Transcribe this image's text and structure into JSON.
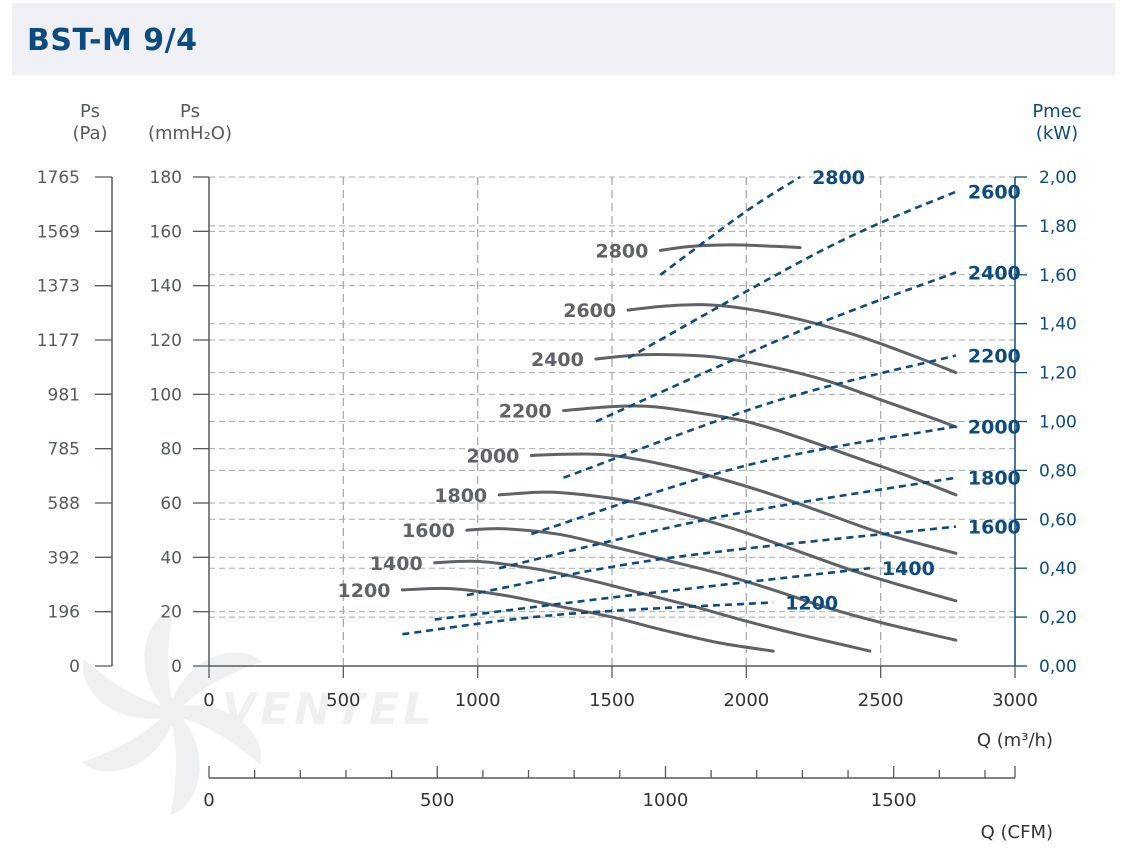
{
  "header": {
    "title": "BST-M 9/4"
  },
  "chart_data": {
    "type": "line",
    "title": "BST-M 9/4",
    "x_axis": {
      "label": "Q (m³/h)",
      "range": [
        0,
        3000
      ],
      "ticks": [
        "0",
        "500",
        "1000",
        "1500",
        "2000",
        "2500",
        "3000"
      ]
    },
    "cfm_axis": {
      "label": "Q (CFM)",
      "ticks": [
        "0",
        "500",
        "1000",
        "1500"
      ],
      "tick_values": [
        0,
        500,
        1000,
        1500
      ]
    },
    "y_pa_axis": {
      "label_top": "Ps",
      "label_unit": "(Pa)",
      "ticks": [
        "0",
        "196",
        "392",
        "588",
        "785",
        "981",
        "1177",
        "1373",
        "1569",
        "1765"
      ]
    },
    "y_mm_axis": {
      "label_top": "Ps",
      "label_unit": "(mmH₂O)",
      "range": [
        0,
        180
      ],
      "ticks": [
        "0",
        "20",
        "40",
        "60",
        "80",
        "100",
        "120",
        "140",
        "160",
        "180"
      ]
    },
    "y_power_axis": {
      "label_top": "Pmec",
      "label_unit": "(kW)",
      "range": [
        0,
        2
      ],
      "ticks": [
        "0,00",
        "0,20",
        "0,40",
        "0,60",
        "0,80",
        "1,00",
        "1,20",
        "1,40",
        "1,60",
        "1,80",
        "2,00"
      ]
    },
    "grid": true,
    "colors": {
      "pressure": "#5f6268",
      "power": "#0d4a7e",
      "grid": "#a9abb0",
      "axis": "#555a60"
    },
    "pressure_curves": [
      {
        "rpm": "1200",
        "points": [
          [
            720,
            28
          ],
          [
            900,
            28.5
          ],
          [
            1100,
            26
          ],
          [
            1300,
            22
          ],
          [
            1500,
            18
          ],
          [
            1700,
            13
          ],
          [
            1900,
            8.5
          ],
          [
            2100,
            5.5
          ]
        ]
      },
      {
        "rpm": "1400",
        "points": [
          [
            840,
            38
          ],
          [
            1000,
            38.5
          ],
          [
            1200,
            36
          ],
          [
            1400,
            32
          ],
          [
            1600,
            27
          ],
          [
            1800,
            22
          ],
          [
            2000,
            16.5
          ],
          [
            2200,
            11.5
          ],
          [
            2460,
            5.5
          ]
        ]
      },
      {
        "rpm": "1600",
        "points": [
          [
            960,
            50
          ],
          [
            1100,
            50.5
          ],
          [
            1300,
            48.5
          ],
          [
            1500,
            44
          ],
          [
            1700,
            39
          ],
          [
            1900,
            34
          ],
          [
            2100,
            28
          ],
          [
            2300,
            21.5
          ],
          [
            2500,
            16
          ],
          [
            2780,
            9.5
          ]
        ]
      },
      {
        "rpm": "1800",
        "points": [
          [
            1080,
            63
          ],
          [
            1250,
            64
          ],
          [
            1400,
            63
          ],
          [
            1600,
            60
          ],
          [
            1800,
            55
          ],
          [
            2000,
            49
          ],
          [
            2200,
            42
          ],
          [
            2400,
            35
          ],
          [
            2600,
            29
          ],
          [
            2780,
            24
          ]
        ]
      },
      {
        "rpm": "2000",
        "points": [
          [
            1200,
            77.5
          ],
          [
            1350,
            78
          ],
          [
            1500,
            77.5
          ],
          [
            1700,
            74
          ],
          [
            1900,
            69
          ],
          [
            2100,
            63
          ],
          [
            2300,
            56
          ],
          [
            2500,
            49
          ],
          [
            2780,
            41.5
          ]
        ]
      },
      {
        "rpm": "2200",
        "points": [
          [
            1320,
            94
          ],
          [
            1500,
            95.5
          ],
          [
            1650,
            95.5
          ],
          [
            1800,
            93.5
          ],
          [
            2000,
            90
          ],
          [
            2200,
            84
          ],
          [
            2400,
            77
          ],
          [
            2600,
            70
          ],
          [
            2780,
            63
          ]
        ]
      },
      {
        "rpm": "2400",
        "points": [
          [
            1440,
            113
          ],
          [
            1600,
            114.5
          ],
          [
            1750,
            114.5
          ],
          [
            1900,
            113.5
          ],
          [
            2100,
            110
          ],
          [
            2300,
            105
          ],
          [
            2500,
            98
          ],
          [
            2700,
            91
          ],
          [
            2780,
            88
          ]
        ]
      },
      {
        "rpm": "2600",
        "points": [
          [
            1560,
            131
          ],
          [
            1700,
            132.5
          ],
          [
            1850,
            133
          ],
          [
            2000,
            131.5
          ],
          [
            2200,
            127.5
          ],
          [
            2400,
            122
          ],
          [
            2600,
            115
          ],
          [
            2780,
            108
          ]
        ]
      },
      {
        "rpm": "2800",
        "points": [
          [
            1680,
            153
          ],
          [
            1800,
            154.5
          ],
          [
            1950,
            155
          ],
          [
            2100,
            154.5
          ],
          [
            2200,
            154
          ]
        ]
      }
    ],
    "power_curves": [
      {
        "rpm": "1200",
        "points": [
          [
            720,
            0.13
          ],
          [
            1300,
            0.21
          ],
          [
            2100,
            0.26
          ]
        ]
      },
      {
        "rpm": "1400",
        "points": [
          [
            840,
            0.19
          ],
          [
            1500,
            0.28
          ],
          [
            2460,
            0.4
          ]
        ]
      },
      {
        "rpm": "1600",
        "points": [
          [
            960,
            0.29
          ],
          [
            1700,
            0.44
          ],
          [
            2780,
            0.57
          ]
        ]
      },
      {
        "rpm": "1800",
        "points": [
          [
            1080,
            0.4
          ],
          [
            1900,
            0.61
          ],
          [
            2780,
            0.77
          ]
        ]
      },
      {
        "rpm": "2000",
        "points": [
          [
            1200,
            0.54
          ],
          [
            2000,
            0.82
          ],
          [
            2780,
            0.98
          ]
        ]
      },
      {
        "rpm": "2200",
        "points": [
          [
            1320,
            0.77
          ],
          [
            2100,
            1.08
          ],
          [
            2780,
            1.27
          ]
        ]
      },
      {
        "rpm": "2400",
        "points": [
          [
            1440,
            1.0
          ],
          [
            2200,
            1.37
          ],
          [
            2780,
            1.61
          ]
        ]
      },
      {
        "rpm": "2600",
        "points": [
          [
            1560,
            1.26
          ],
          [
            2300,
            1.71
          ],
          [
            2780,
            1.94
          ]
        ]
      },
      {
        "rpm": "2800",
        "points": [
          [
            1680,
            1.6
          ],
          [
            2000,
            1.86
          ],
          [
            2200,
            2.0
          ]
        ]
      }
    ],
    "watermark": "VENTEL"
  }
}
